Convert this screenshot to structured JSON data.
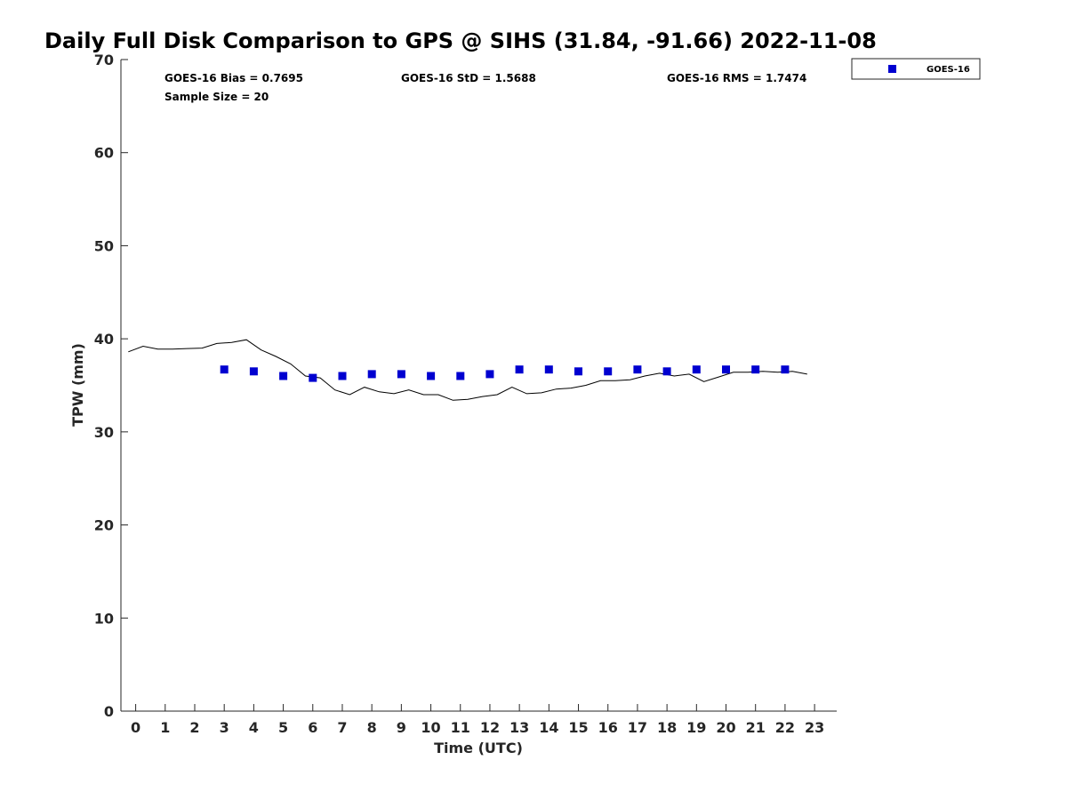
{
  "chart_data": {
    "type": "scatter",
    "title": "Daily Full Disk Comparison to GPS @ SIHS (31.84, -91.66) 2022-11-08",
    "xlabel": "Time (UTC)",
    "ylabel": "TPW (mm)",
    "xlim": [
      -0.5,
      23.75
    ],
    "ylim": [
      0,
      70
    ],
    "x_ticks": [
      "0",
      "1",
      "2",
      "3",
      "4",
      "5",
      "6",
      "7",
      "8",
      "9",
      "10",
      "11",
      "12",
      "13",
      "14",
      "15",
      "16",
      "17",
      "18",
      "19",
      "20",
      "21",
      "22",
      "23"
    ],
    "y_ticks": [
      "0",
      "10",
      "20",
      "30",
      "40",
      "50",
      "60",
      "70"
    ],
    "grid": false,
    "legend_position": "top-right",
    "stats": {
      "bias": "GOES-16 Bias = 0.7695",
      "std": "GOES-16 StD = 1.5688",
      "rms": "GOES-16 RMS = 1.7474",
      "sample": "Sample Size = 20"
    },
    "series": [
      {
        "name": "GOES-16",
        "kind": "markers",
        "color": "#0000d0",
        "x": [
          3,
          4,
          5,
          6,
          7,
          8,
          9,
          10,
          11,
          12,
          13,
          14,
          15,
          16,
          17,
          18,
          19,
          20,
          21,
          22
        ],
        "y": [
          36.7,
          36.5,
          36.0,
          35.8,
          36.0,
          36.2,
          36.2,
          36.0,
          36.0,
          36.2,
          36.7,
          36.7,
          36.5,
          36.5,
          36.7,
          36.5,
          36.7,
          36.7,
          36.7,
          36.7
        ]
      },
      {
        "kind": "line",
        "color": "#000000",
        "x": [
          -0.25,
          0.25,
          0.75,
          1.25,
          1.75,
          2.25,
          2.75,
          3.25,
          3.75,
          4.25,
          4.75,
          5.25,
          5.75,
          6.25,
          6.75,
          7.25,
          7.75,
          8.25,
          8.75,
          9.25,
          9.75,
          10.25,
          10.75,
          11.25,
          11.75,
          12.25,
          12.75,
          13.25,
          13.75,
          14.25,
          14.75,
          15.25,
          15.75,
          16.25,
          16.75,
          17.25,
          17.75,
          18.25,
          18.75,
          19.25,
          19.75,
          20.25,
          20.75,
          21.25,
          21.75,
          22.25,
          22.75
        ],
        "y": [
          38.6,
          39.2,
          38.9,
          38.9,
          38.95,
          39.0,
          39.5,
          39.6,
          39.9,
          38.8,
          38.1,
          37.3,
          36.0,
          35.8,
          34.5,
          34.0,
          34.8,
          34.3,
          34.1,
          34.5,
          34.0,
          34.0,
          33.4,
          33.5,
          33.8,
          34.0,
          34.8,
          34.1,
          34.2,
          34.6,
          34.7,
          35.0,
          35.5,
          35.5,
          35.6,
          36.0,
          36.3,
          36.0,
          36.2,
          35.4,
          35.9,
          36.4,
          36.4,
          36.5,
          36.4,
          36.5,
          36.2
        ]
      }
    ]
  }
}
